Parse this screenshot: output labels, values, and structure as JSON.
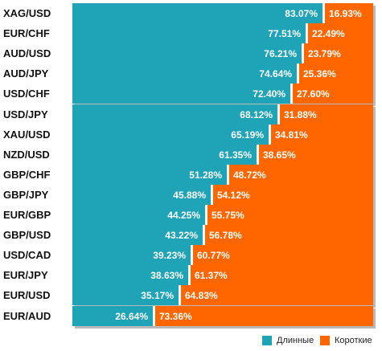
{
  "chart_data": {
    "type": "bar",
    "orientation": "horizontal",
    "stacked": true,
    "normalized_100_percent": true,
    "categories": [
      "XAG/USD",
      "EUR/CHF",
      "AUD/USD",
      "AUD/JPY",
      "USD/CHF",
      "USD/JPY",
      "XAU/USD",
      "NZD/USD",
      "GBP/CHF",
      "GBP/JPY",
      "EUR/GBP",
      "GBP/USD",
      "USD/CAD",
      "EUR/JPY",
      "EUR/USD",
      "EUR/AUD"
    ],
    "series": [
      {
        "name": "Длинные",
        "color": "#1ea3b7",
        "values": [
          83.07,
          77.51,
          76.21,
          74.64,
          72.4,
          68.12,
          65.19,
          61.35,
          51.28,
          45.88,
          44.25,
          43.22,
          39.23,
          38.63,
          35.17,
          26.64
        ],
        "labels": [
          "83.07%",
          "77.51%",
          "76.21%",
          "74.64%",
          "72.40%",
          "68.12%",
          "65.19%",
          "61.35%",
          "51.28%",
          "45.88%",
          "44.25%",
          "43.22%",
          "39.23%",
          "38.63%",
          "35.17%",
          "26.64%"
        ]
      },
      {
        "name": "Короткие",
        "color": "#ff6600",
        "values": [
          16.93,
          22.49,
          23.79,
          25.36,
          27.6,
          31.88,
          34.81,
          38.65,
          48.72,
          54.12,
          55.75,
          56.78,
          60.77,
          61.37,
          64.83,
          73.36
        ],
        "labels": [
          "16.93%",
          "22.49%",
          "23.79%",
          "25.36%",
          "27.60%",
          "31.88%",
          "34.81%",
          "38.65%",
          "48.72%",
          "54.12%",
          "55.75%",
          "56.78%",
          "60.77%",
          "61.37%",
          "64.83%",
          "73.36%"
        ]
      }
    ],
    "xlim": [
      0,
      100
    ],
    "legend_position": "bottom-right",
    "grid": false
  },
  "legend": {
    "long_label": "Длинные",
    "short_label": "Короткие"
  }
}
